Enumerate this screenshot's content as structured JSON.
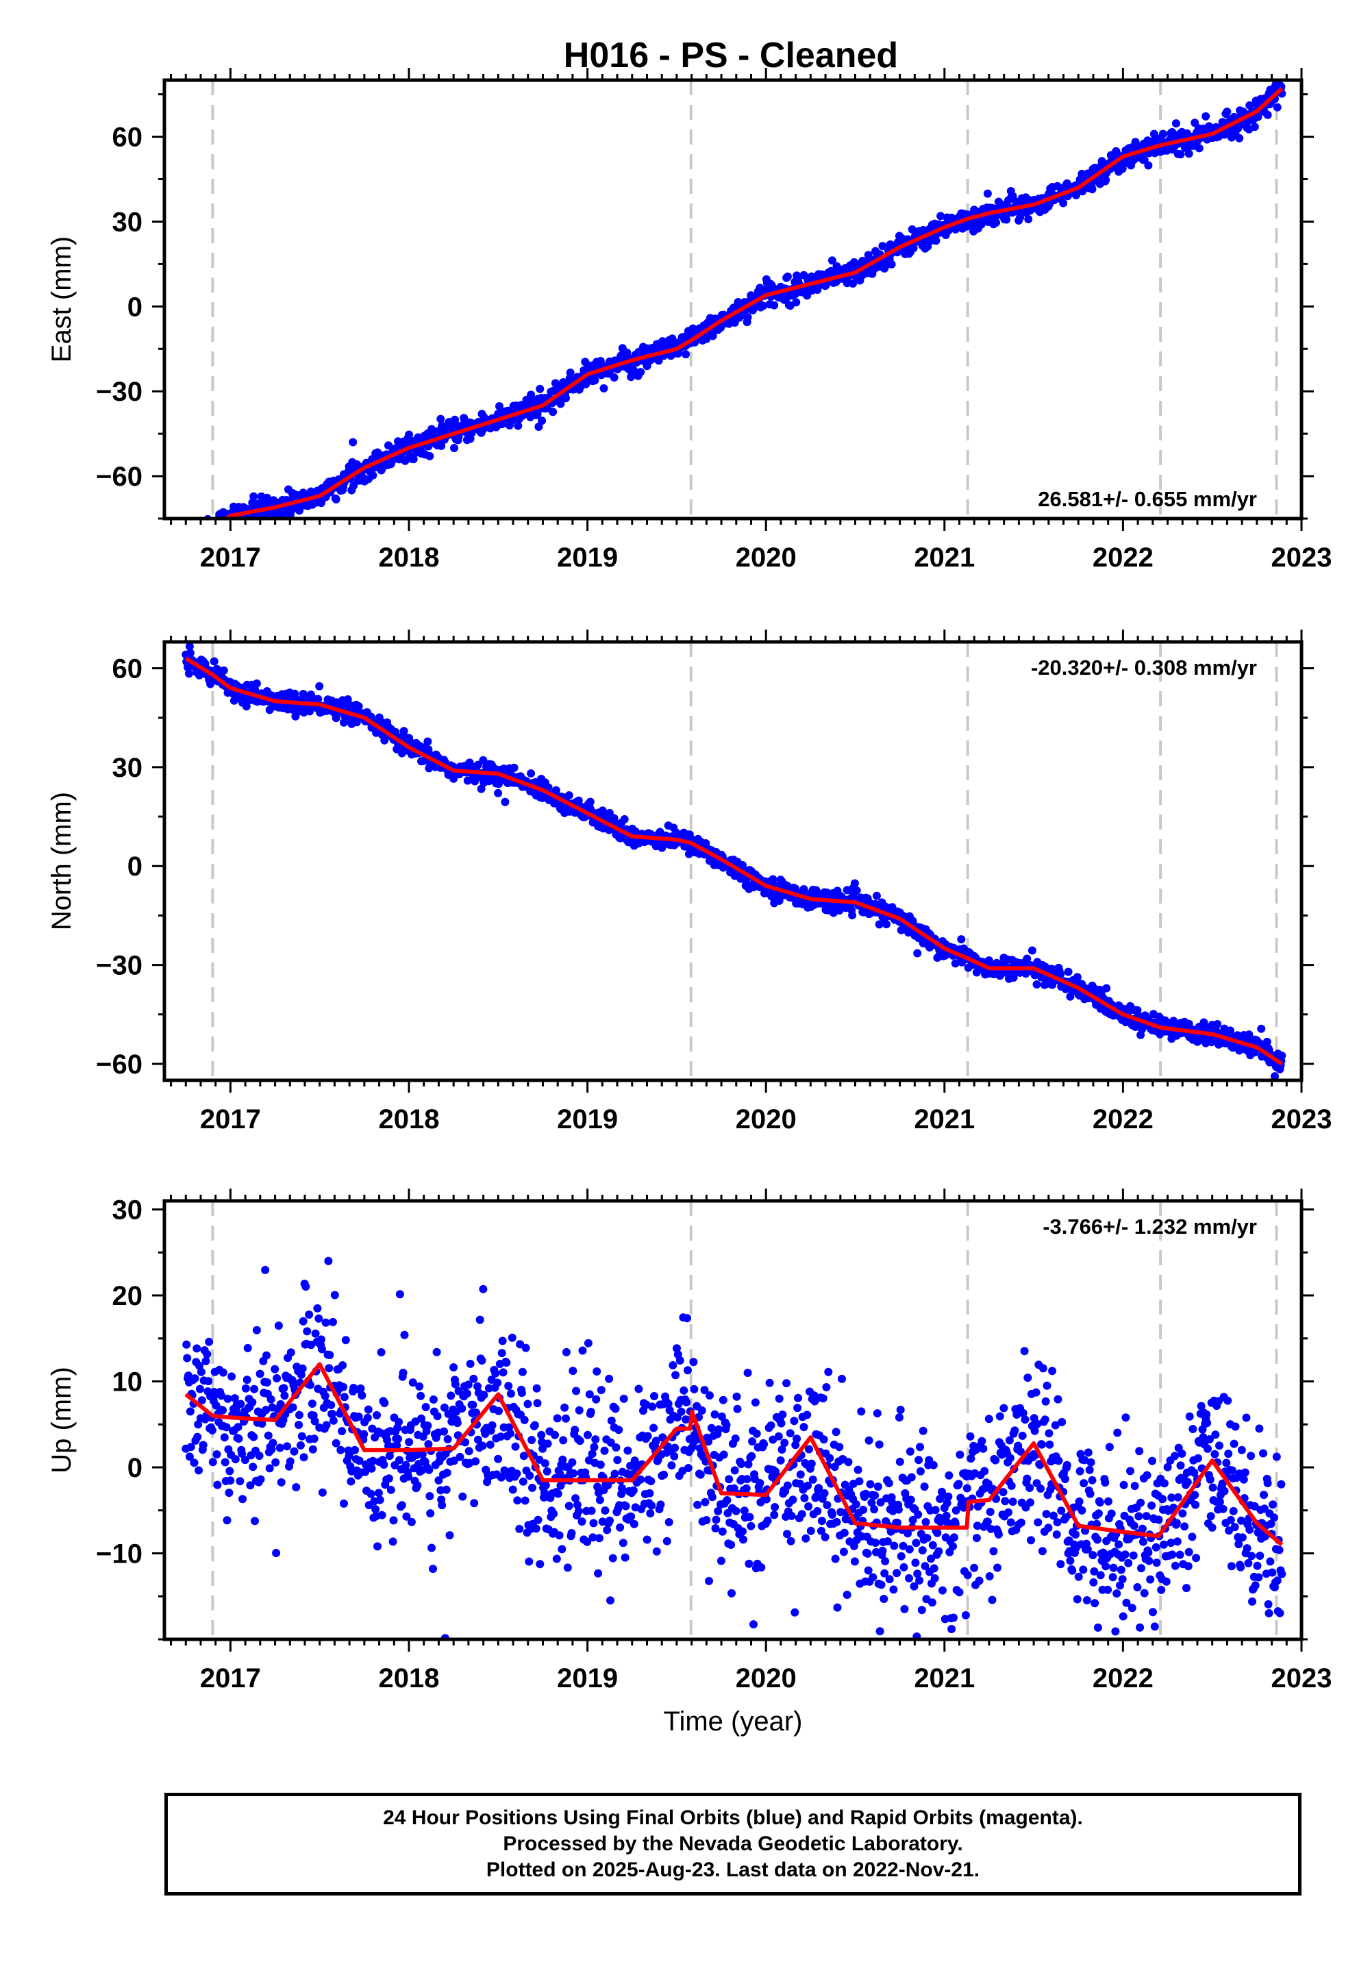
{
  "title": "H016  - PS - Cleaned",
  "footer": {
    "line1": "24 Hour Positions Using Final Orbits (blue) and Rapid Orbits (magenta).",
    "line2": "Processed by the Nevada Geodetic Laboratory.",
    "line3": "Plotted on 2025-Aug-23. Last data on 2022-Nov-21."
  },
  "colors": {
    "points": "#0000ff",
    "fit": "#ff0000",
    "event_lines": "#c8c8c8",
    "frame": "#000000"
  },
  "chart_data": [
    {
      "type": "scatter",
      "ylabel": "East (mm)",
      "xlabel": "",
      "xlim": [
        2016.63,
        2023.0
      ],
      "ylim": [
        -75,
        80
      ],
      "xticks": [
        2017,
        2018,
        2019,
        2020,
        2021,
        2022,
        2023
      ],
      "yticks": [
        -60,
        -30,
        0,
        30,
        60
      ],
      "rate_label": "26.581+/- 0.655 mm/yr",
      "rate_position": "bottom-right",
      "event_lines_x": [
        2016.9,
        2019.58,
        2021.13,
        2022.21,
        2022.86
      ],
      "series": [
        {
          "name": "Final Orbits (blue)",
          "style": "points",
          "data_range_x": [
            2016.75,
            2022.89
          ],
          "scatter_mm": 2
        },
        {
          "style": "fit-line",
          "x": [
            2016.75,
            2016.9,
            2017.0,
            2017.25,
            2017.5,
            2017.75,
            2018.0,
            2018.25,
            2018.5,
            2018.75,
            2019.0,
            2019.25,
            2019.5,
            2019.58,
            2019.75,
            2020.0,
            2020.25,
            2020.5,
            2020.75,
            2021.0,
            2021.13,
            2021.25,
            2021.5,
            2021.75,
            2022.0,
            2022.21,
            2022.5,
            2022.75,
            2022.89
          ],
          "y": [
            -85,
            -78,
            -74,
            -71,
            -67,
            -57,
            -50,
            -45,
            -40,
            -35,
            -24,
            -19,
            -15,
            -12,
            -5,
            4,
            8,
            12,
            21,
            28,
            31,
            33,
            36,
            42,
            53,
            57,
            61,
            69,
            77
          ]
        }
      ]
    },
    {
      "type": "scatter",
      "ylabel": "North (mm)",
      "xlabel": "",
      "xlim": [
        2016.63,
        2023.0
      ],
      "ylim": [
        -65,
        68
      ],
      "xticks": [
        2017,
        2018,
        2019,
        2020,
        2021,
        2022,
        2023
      ],
      "yticks": [
        -60,
        -30,
        0,
        30,
        60
      ],
      "rate_label": "-20.320+/- 0.308 mm/yr",
      "rate_position": "top-right",
      "event_lines_x": [
        2016.9,
        2019.58,
        2021.13,
        2022.21,
        2022.86
      ],
      "series": [
        {
          "name": "Final Orbits (blue)",
          "style": "points",
          "data_range_x": [
            2016.75,
            2022.89
          ],
          "scatter_mm": 1.5
        },
        {
          "style": "fit-line",
          "x": [
            2016.75,
            2016.9,
            2017.0,
            2017.25,
            2017.5,
            2017.75,
            2018.0,
            2018.25,
            2018.5,
            2018.75,
            2019.0,
            2019.25,
            2019.5,
            2019.58,
            2019.75,
            2020.0,
            2020.25,
            2020.5,
            2020.75,
            2021.0,
            2021.13,
            2021.25,
            2021.5,
            2021.75,
            2022.0,
            2022.21,
            2022.5,
            2022.75,
            2022.89
          ],
          "y": [
            63,
            58,
            54,
            50,
            49,
            45,
            36,
            29,
            28,
            23,
            16,
            9,
            8,
            7,
            2,
            -6,
            -10,
            -11,
            -16,
            -25,
            -28,
            -31,
            -31,
            -37,
            -45,
            -49,
            -51,
            -55,
            -60
          ]
        }
      ]
    },
    {
      "type": "scatter",
      "ylabel": "Up (mm)",
      "xlabel": "Time (year)",
      "xlim": [
        2016.63,
        2023.0
      ],
      "ylim": [
        -20,
        31
      ],
      "xticks": [
        2017,
        2018,
        2019,
        2020,
        2021,
        2022,
        2023
      ],
      "yticks": [
        -10,
        0,
        10,
        20,
        30
      ],
      "rate_label": "-3.766+/- 1.232 mm/yr",
      "rate_position": "top-right",
      "event_lines_x": [
        2016.9,
        2019.58,
        2021.13,
        2022.21,
        2022.86
      ],
      "series": [
        {
          "name": "Final Orbits (blue)",
          "style": "points",
          "data_range_x": [
            2016.75,
            2022.89
          ],
          "scatter_mm": 5
        },
        {
          "style": "fit-line",
          "x": [
            2016.75,
            2016.9,
            2017.0,
            2017.25,
            2017.5,
            2017.75,
            2018.0,
            2018.25,
            2018.5,
            2018.75,
            2019.0,
            2019.25,
            2019.5,
            2019.575,
            2019.585,
            2019.75,
            2020.0,
            2020.25,
            2020.5,
            2020.75,
            2021.0,
            2021.125,
            2021.135,
            2021.25,
            2021.5,
            2021.75,
            2022.0,
            2022.2,
            2022.5,
            2022.75,
            2022.89
          ],
          "y": [
            8.5,
            6,
            5.8,
            5.5,
            12,
            2,
            2,
            2.2,
            8.5,
            -1.5,
            -1.5,
            -1.5,
            4.5,
            4.5,
            6.5,
            -3,
            -3.2,
            3.5,
            -6.5,
            -7,
            -7,
            -7,
            -4,
            -3.8,
            2.8,
            -6.8,
            -7.5,
            -8,
            0.8,
            -6.5,
            -9
          ]
        }
      ]
    }
  ]
}
